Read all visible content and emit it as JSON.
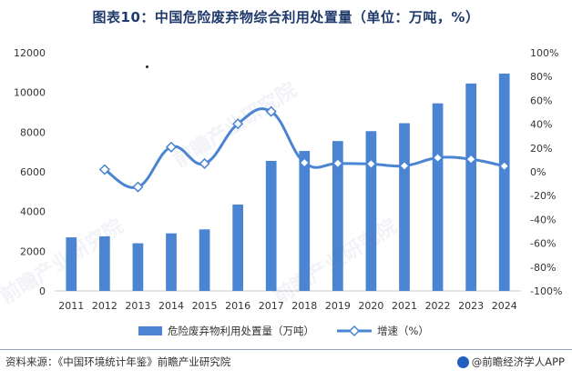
{
  "title": "图表10：中国危险废弃物综合利用处置量（单位：万吨，%）",
  "source": "资料来源：《中国环境统计年鉴》前瞻产业研究院",
  "brand": "@前瞻经济学人APP",
  "watermark": "前瞻产业研究院",
  "colors": {
    "bar": "#4a84d2",
    "line": "#4a84d2",
    "marker_fill": "#ffffff",
    "text": "#333333",
    "title": "#1f3a6b"
  },
  "chart_data": {
    "type": "bar",
    "categories": [
      "2011",
      "2012",
      "2013",
      "2014",
      "2015",
      "2016",
      "2017",
      "2018",
      "2019",
      "2020",
      "2021",
      "2022",
      "2023",
      "2024"
    ],
    "series": [
      {
        "name": "危险废弃物利用处置量（万吨）",
        "type": "bar",
        "axis": "left",
        "values": [
          2700,
          2750,
          2400,
          2900,
          3100,
          4350,
          6550,
          7050,
          7550,
          8050,
          8450,
          9450,
          10450,
          10950
        ]
      },
      {
        "name": "增速（%）",
        "type": "line",
        "axis": "right",
        "values": [
          null,
          1.9,
          -12.7,
          20.8,
          6.9,
          40.3,
          50.6,
          7.6,
          7.1,
          6.6,
          5.0,
          11.8,
          10.6,
          4.8
        ]
      }
    ],
    "y_left": {
      "min": 0,
      "max": 12000,
      "ticks": [
        0,
        2000,
        4000,
        6000,
        8000,
        10000,
        12000
      ]
    },
    "y_right": {
      "min": -100,
      "max": 100,
      "ticks": [
        -100,
        -80,
        -60,
        -40,
        -20,
        0,
        20,
        40,
        60,
        80,
        100
      ],
      "unit": "%"
    },
    "legend_position": "bottom-center",
    "grid": false
  }
}
